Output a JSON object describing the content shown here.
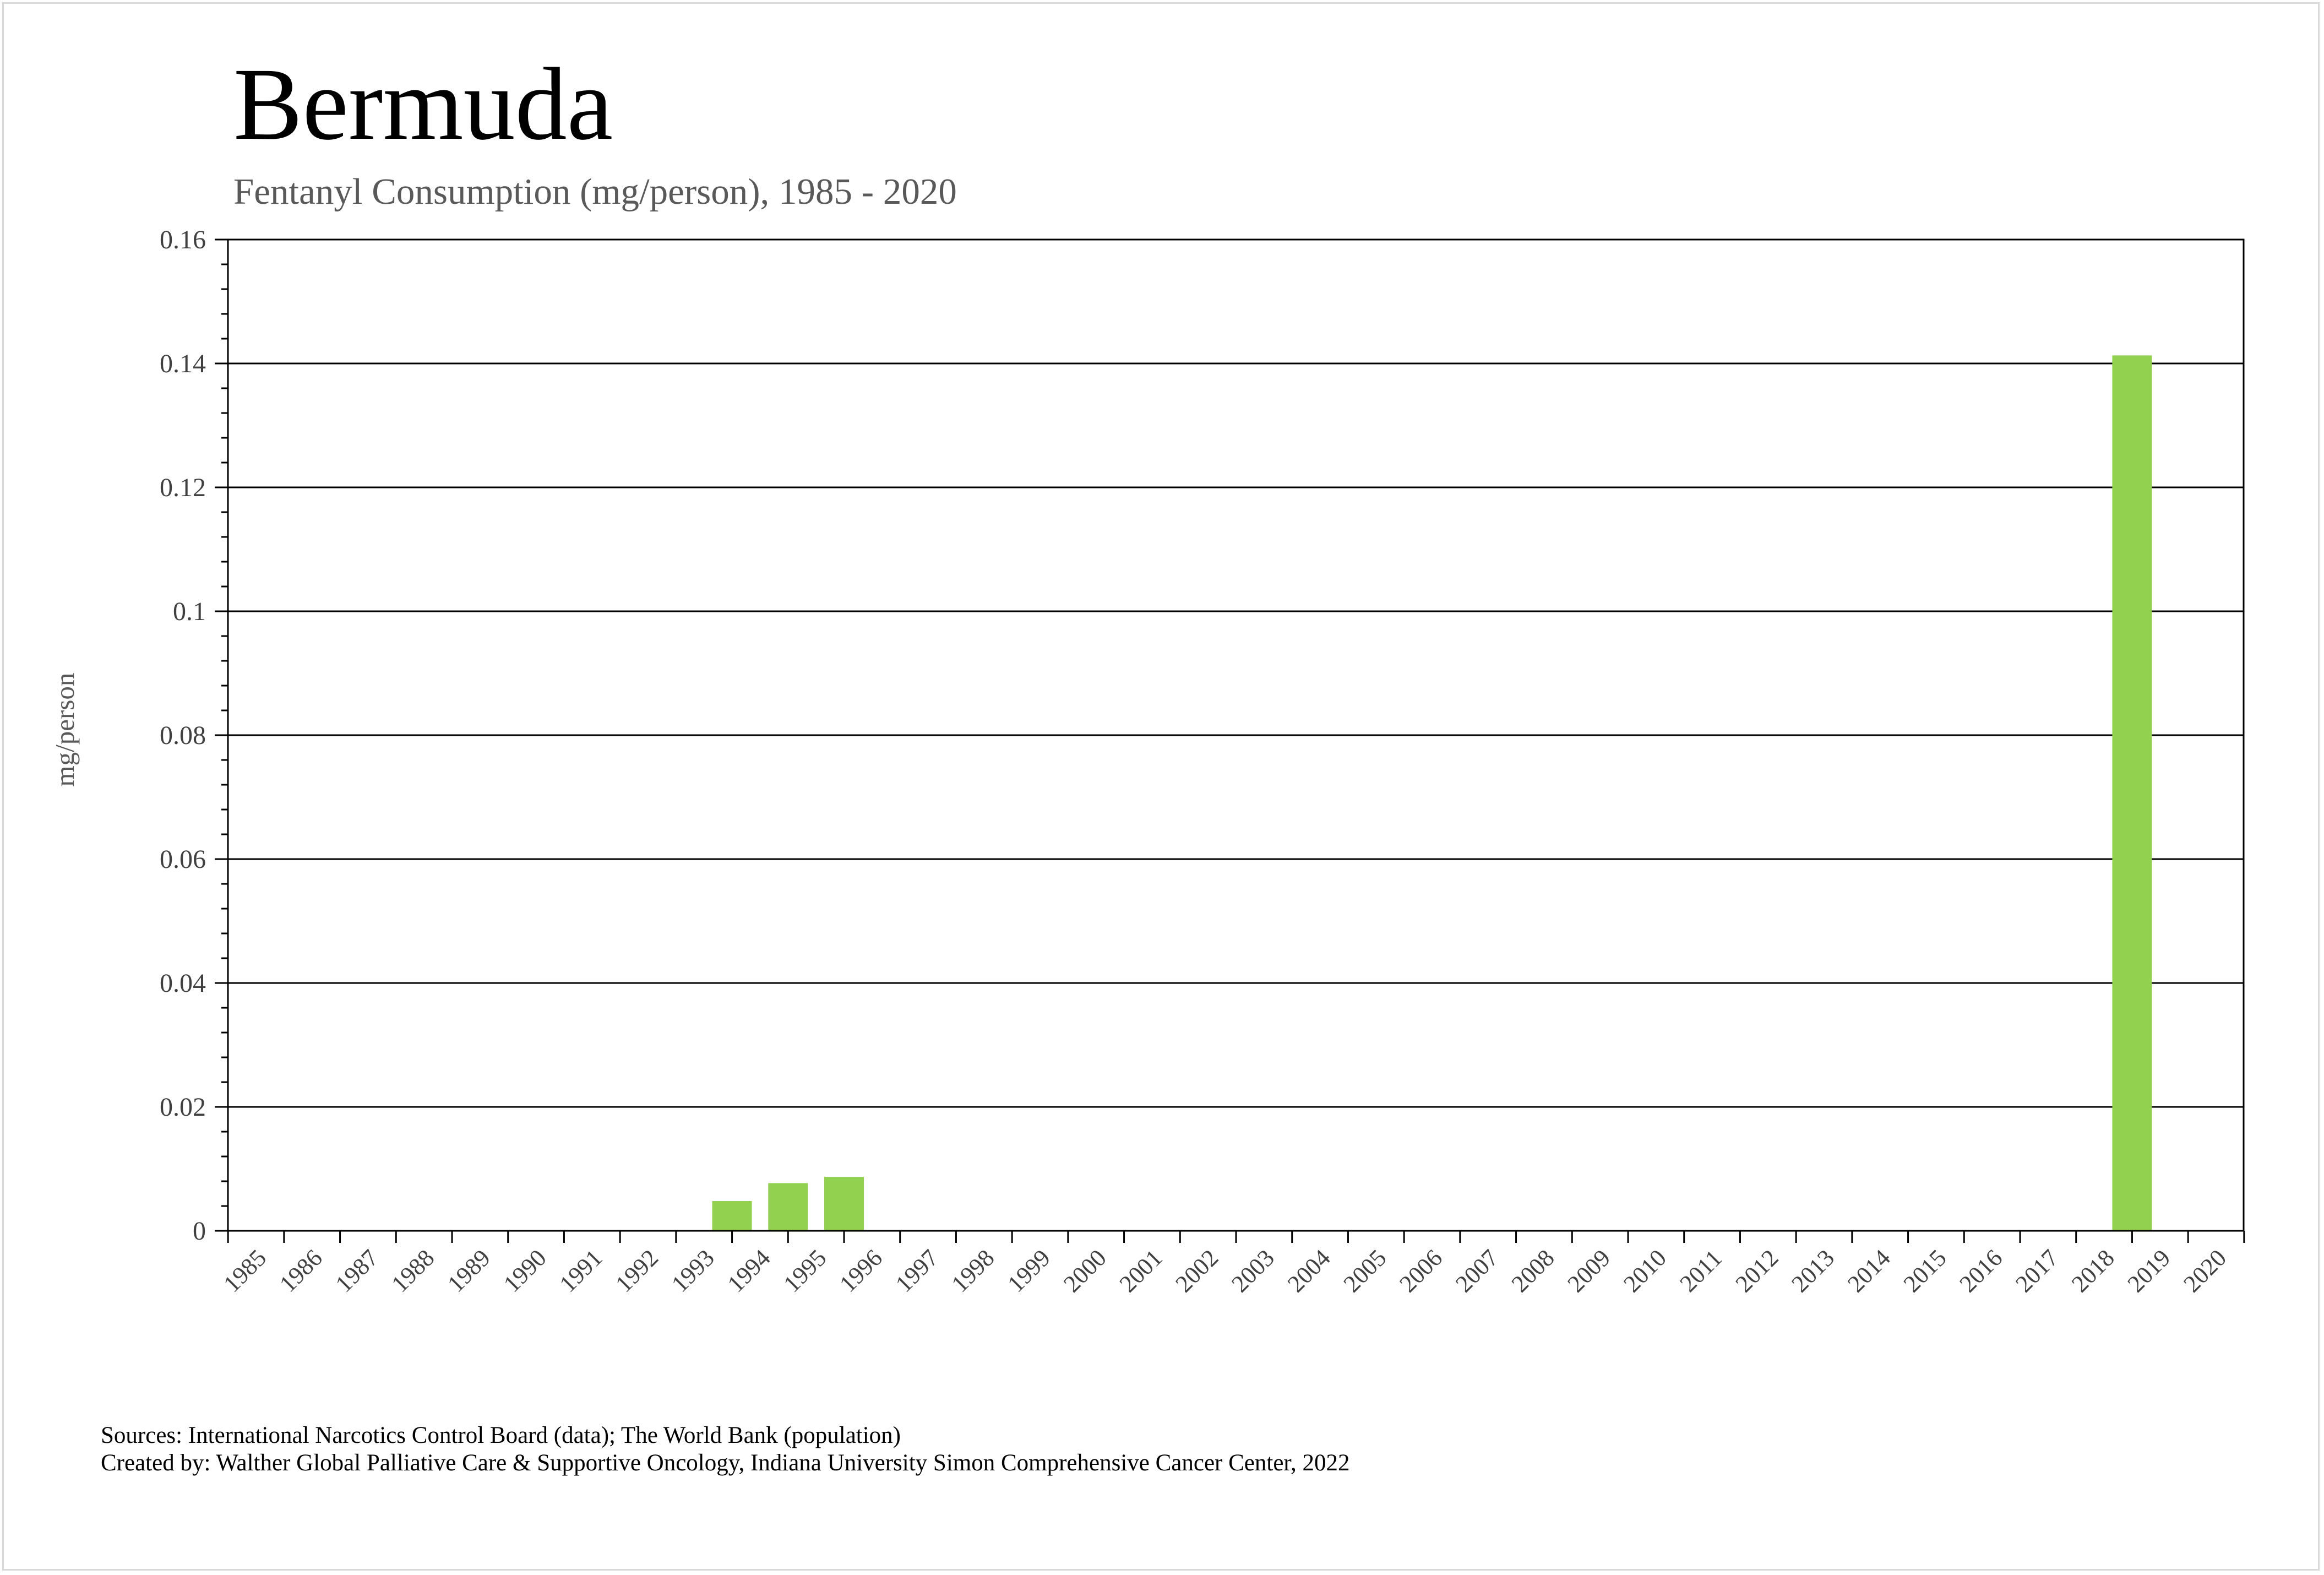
{
  "chart_data": {
    "type": "bar",
    "title": "Bermuda",
    "subtitle": "Fentanyl Consumption (mg/person), 1985 - 2020",
    "xlabel": "",
    "ylabel": "mg/person",
    "ylim": [
      0,
      0.16
    ],
    "y_ticks": [
      "0",
      "0.02",
      "0.04",
      "0.06",
      "0.08",
      "0.1",
      "0.12",
      "0.14",
      "0.16"
    ],
    "y_tick_values": [
      0,
      0.02,
      0.04,
      0.06,
      0.08,
      0.1,
      0.12,
      0.14,
      0.16
    ],
    "categories": [
      "1985",
      "1986",
      "1987",
      "1988",
      "1989",
      "1990",
      "1991",
      "1992",
      "1993",
      "1994",
      "1995",
      "1996",
      "1997",
      "1998",
      "1999",
      "2000",
      "2001",
      "2002",
      "2003",
      "2004",
      "2005",
      "2006",
      "2007",
      "2008",
      "2009",
      "2010",
      "2011",
      "2012",
      "2013",
      "2014",
      "2015",
      "2016",
      "2017",
      "2018",
      "2019",
      "2020"
    ],
    "values": [
      0,
      0,
      0,
      0,
      0,
      0,
      0,
      0,
      0.0048,
      0.0077,
      0.0087,
      0,
      0,
      0,
      0,
      0,
      0,
      0,
      0,
      0,
      0,
      0,
      0,
      0,
      0,
      0,
      0,
      0,
      0,
      0,
      0,
      0,
      0,
      0.1413,
      0,
      0
    ],
    "bar_color": "#92d050",
    "grid": true,
    "legend": "none"
  },
  "footer": {
    "sources": "Sources: International Narcotics Control Board (data); The World Bank (population)",
    "credit": "Created by: Walther Global Palliative Care & Supportive Oncology, Indiana University Simon Comprehensive Cancer Center, 2022"
  }
}
